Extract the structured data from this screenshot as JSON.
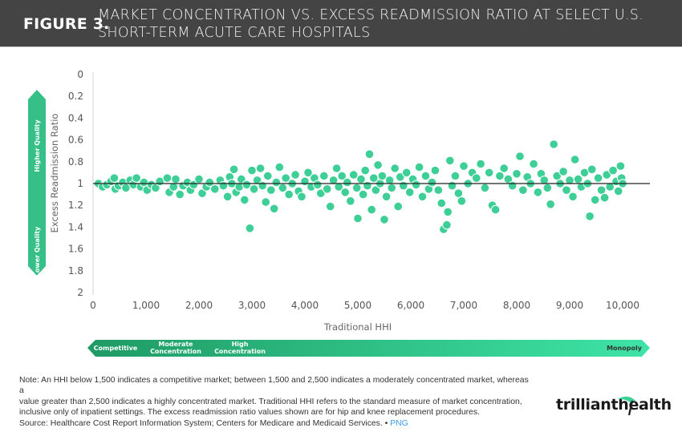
{
  "header": {
    "figure_label": "FIGURE 3.",
    "title_line1": "MARKET CONCENTRATION VS. EXCESS READMISSION RATIO AT SELECT U.S.",
    "title_line2": "SHORT-TERM ACUTE CARE HOSPITALS"
  },
  "quality_arrow": {
    "top_label": "Higher Quality",
    "bottom_label": "Lower Quality"
  },
  "concentration_band": {
    "labels": [
      {
        "line1": "Competitive",
        "line2": ""
      },
      {
        "line1": "Moderate",
        "line2": "Concentration"
      },
      {
        "line1": "High",
        "line2": "Concentration"
      }
    ],
    "end_label": "Monopoly"
  },
  "colors": {
    "point": "#3ecf97",
    "band_start": "#1f9a64",
    "band_end": "#3ee4a6",
    "header_bg": "#444444",
    "reference_line": "#222222",
    "link": "#3d9be9"
  },
  "chart_data": {
    "type": "scatter",
    "title": "MARKET CONCENTRATION VS. EXCESS READMISSION RATIO AT SELECT U.S. SHORT-TERM ACUTE CARE HOSPITALS",
    "xlabel": "Traditional HHI",
    "ylabel": "Excess Readmission Ratio",
    "xlim": [
      0,
      10000
    ],
    "ylim": [
      0,
      2
    ],
    "y_inverted": true,
    "x_ticks": [
      "0",
      "1,000",
      "2,000",
      "3,000",
      "4,000",
      "5,000",
      "6,000",
      "7,000",
      "8,000",
      "9,000",
      "10,000"
    ],
    "x_tick_values": [
      0,
      1000,
      2000,
      3000,
      4000,
      5000,
      6000,
      7000,
      8000,
      9000,
      10000
    ],
    "y_ticks": [
      "0",
      "0.2",
      "0.4",
      "0.6",
      "0.8",
      "1",
      "1.2",
      "1.4",
      "1.6",
      "1.8",
      "2"
    ],
    "y_tick_values": [
      0,
      0.2,
      0.4,
      0.6,
      0.8,
      1,
      1.2,
      1.4,
      1.6,
      1.8,
      2
    ],
    "reference_line_y": 1,
    "grid": false,
    "legend": "none",
    "points": [
      [
        100,
        1.0
      ],
      [
        180,
        1.03
      ],
      [
        260,
        1.01
      ],
      [
        340,
        0.98
      ],
      [
        420,
        1.05
      ],
      [
        400,
        0.95
      ],
      [
        480,
        1.02
      ],
      [
        560,
        0.99
      ],
      [
        620,
        1.04
      ],
      [
        700,
        0.97
      ],
      [
        760,
        1.01
      ],
      [
        820,
        0.95
      ],
      [
        900,
        1.03
      ],
      [
        960,
        0.99
      ],
      [
        1020,
        1.06
      ],
      [
        1100,
        1.01
      ],
      [
        1180,
        1.04
      ],
      [
        1260,
        0.98
      ],
      [
        1400,
        0.95
      ],
      [
        1440,
        1.08
      ],
      [
        1520,
        1.03
      ],
      [
        1560,
        0.96
      ],
      [
        1640,
        1.1
      ],
      [
        1700,
        1.02
      ],
      [
        1780,
        0.99
      ],
      [
        1840,
        1.06
      ],
      [
        1900,
        1.01
      ],
      [
        2000,
        0.96
      ],
      [
        2060,
        1.09
      ],
      [
        2140,
        1.03
      ],
      [
        2200,
        0.99
      ],
      [
        2300,
        1.05
      ],
      [
        2400,
        0.97
      ],
      [
        2460,
        1.02
      ],
      [
        2540,
        1.12
      ],
      [
        2580,
        0.94
      ],
      [
        2620,
        1.0
      ],
      [
        2660,
        0.87
      ],
      [
        2700,
        1.08
      ],
      [
        2760,
        1.03
      ],
      [
        2800,
        0.96
      ],
      [
        2860,
        1.15
      ],
      [
        2900,
        1.01
      ],
      [
        2960,
        1.41
      ],
      [
        3000,
        0.88
      ],
      [
        3040,
        1.05
      ],
      [
        3100,
        0.97
      ],
      [
        3160,
        0.86
      ],
      [
        3200,
        1.02
      ],
      [
        3260,
        1.17
      ],
      [
        3300,
        0.93
      ],
      [
        3360,
        1.06
      ],
      [
        3420,
        1.23
      ],
      [
        3460,
        0.99
      ],
      [
        3520,
        0.85
      ],
      [
        3580,
        1.04
      ],
      [
        3640,
        0.95
      ],
      [
        3700,
        1.1
      ],
      [
        3760,
        1.0
      ],
      [
        3820,
        0.92
      ],
      [
        3880,
        1.07
      ],
      [
        3940,
        1.12
      ],
      [
        4000,
        0.98
      ],
      [
        4060,
        0.9
      ],
      [
        4120,
        1.03
      ],
      [
        4180,
        0.95
      ],
      [
        4240,
        1.01
      ],
      [
        4300,
        1.09
      ],
      [
        4360,
        0.93
      ],
      [
        4420,
        1.05
      ],
      [
        4480,
        1.21
      ],
      [
        4540,
        0.97
      ],
      [
        4600,
        0.86
      ],
      [
        4640,
        1.03
      ],
      [
        4700,
        0.93
      ],
      [
        4760,
        1.08
      ],
      [
        4800,
        0.99
      ],
      [
        4860,
        1.16
      ],
      [
        4920,
        0.92
      ],
      [
        4980,
        1.04
      ],
      [
        5000,
        1.32
      ],
      [
        5060,
        0.96
      ],
      [
        5100,
        1.1
      ],
      [
        5140,
        0.88
      ],
      [
        5180,
        1.02
      ],
      [
        5220,
        0.73
      ],
      [
        5260,
        1.24
      ],
      [
        5300,
        0.95
      ],
      [
        5340,
        1.06
      ],
      [
        5380,
        0.83
      ],
      [
        5420,
        1.0
      ],
      [
        5460,
        0.93
      ],
      [
        5500,
        1.33
      ],
      [
        5540,
        1.12
      ],
      [
        5600,
        0.97
      ],
      [
        5640,
        1.04
      ],
      [
        5700,
        0.86
      ],
      [
        5760,
        1.21
      ],
      [
        5800,
        0.94
      ],
      [
        5860,
        1.02
      ],
      [
        5920,
        0.9
      ],
      [
        5980,
        1.08
      ],
      [
        6040,
        0.96
      ],
      [
        6100,
        1.01
      ],
      [
        6160,
        0.85
      ],
      [
        6220,
        1.12
      ],
      [
        6280,
        0.93
      ],
      [
        6340,
        1.05
      ],
      [
        6400,
        0.99
      ],
      [
        6460,
        0.88
      ],
      [
        6520,
        1.06
      ],
      [
        6580,
        1.18
      ],
      [
        6620,
        1.42
      ],
      [
        6680,
        1.38
      ],
      [
        6700,
        1.26
      ],
      [
        6740,
        0.79
      ],
      [
        6780,
        1.02
      ],
      [
        6840,
        0.93
      ],
      [
        6900,
        1.09
      ],
      [
        6960,
        1.16
      ],
      [
        7000,
        0.84
      ],
      [
        7080,
        1.0
      ],
      [
        7160,
        0.9
      ],
      [
        7240,
        0.95
      ],
      [
        7320,
        0.82
      ],
      [
        7400,
        1.04
      ],
      [
        7480,
        0.9
      ],
      [
        7540,
        1.2
      ],
      [
        7600,
        1.24
      ],
      [
        7680,
        0.93
      ],
      [
        7760,
        0.86
      ],
      [
        7840,
        0.96
      ],
      [
        7920,
        1.02
      ],
      [
        8000,
        0.91
      ],
      [
        8060,
        0.75
      ],
      [
        8120,
        1.06
      ],
      [
        8200,
        0.94
      ],
      [
        8260,
        1.0
      ],
      [
        8320,
        0.82
      ],
      [
        8400,
        1.08
      ],
      [
        8460,
        0.91
      ],
      [
        8520,
        0.97
      ],
      [
        8580,
        1.04
      ],
      [
        8640,
        1.19
      ],
      [
        8700,
        0.64
      ],
      [
        8760,
        0.93
      ],
      [
        8820,
        1.0
      ],
      [
        8880,
        0.89
      ],
      [
        8940,
        1.06
      ],
      [
        9000,
        0.97
      ],
      [
        9060,
        1.12
      ],
      [
        9100,
        0.78
      ],
      [
        9160,
        0.96
      ],
      [
        9220,
        1.03
      ],
      [
        9280,
        0.9
      ],
      [
        9340,
        1.0
      ],
      [
        9380,
        1.3
      ],
      [
        9420,
        0.87
      ],
      [
        9480,
        1.15
      ],
      [
        9540,
        0.95
      ],
      [
        9600,
        1.06
      ],
      [
        9660,
        1.13
      ],
      [
        9700,
        0.92
      ],
      [
        9760,
        1.03
      ],
      [
        9820,
        0.88
      ],
      [
        9880,
        0.98
      ],
      [
        9920,
        1.07
      ],
      [
        9960,
        0.84
      ],
      [
        9980,
        0.95
      ],
      [
        10000,
        1.0
      ]
    ]
  },
  "footer": {
    "note_line1": "Note: An HHI below 1,500 indicates a competitive market; between 1,500 and 2,500 indicates a moderately concentrated market, whereas a",
    "note_line2": "value greater than 2,500 indicates a highly concentrated market. Traditional HHI refers to the standard measure of market concentration,",
    "note_line3": "inclusive only of inpatient settings. The excess readmission ratio values shown are for hip and knee replacement procedures.",
    "source": "Source: Healthcare Cost Report Information System; Centers for Medicare and Medicaid Services. • ",
    "png_link": "PNG",
    "logo_left": "trilliant",
    "logo_right": "health"
  }
}
